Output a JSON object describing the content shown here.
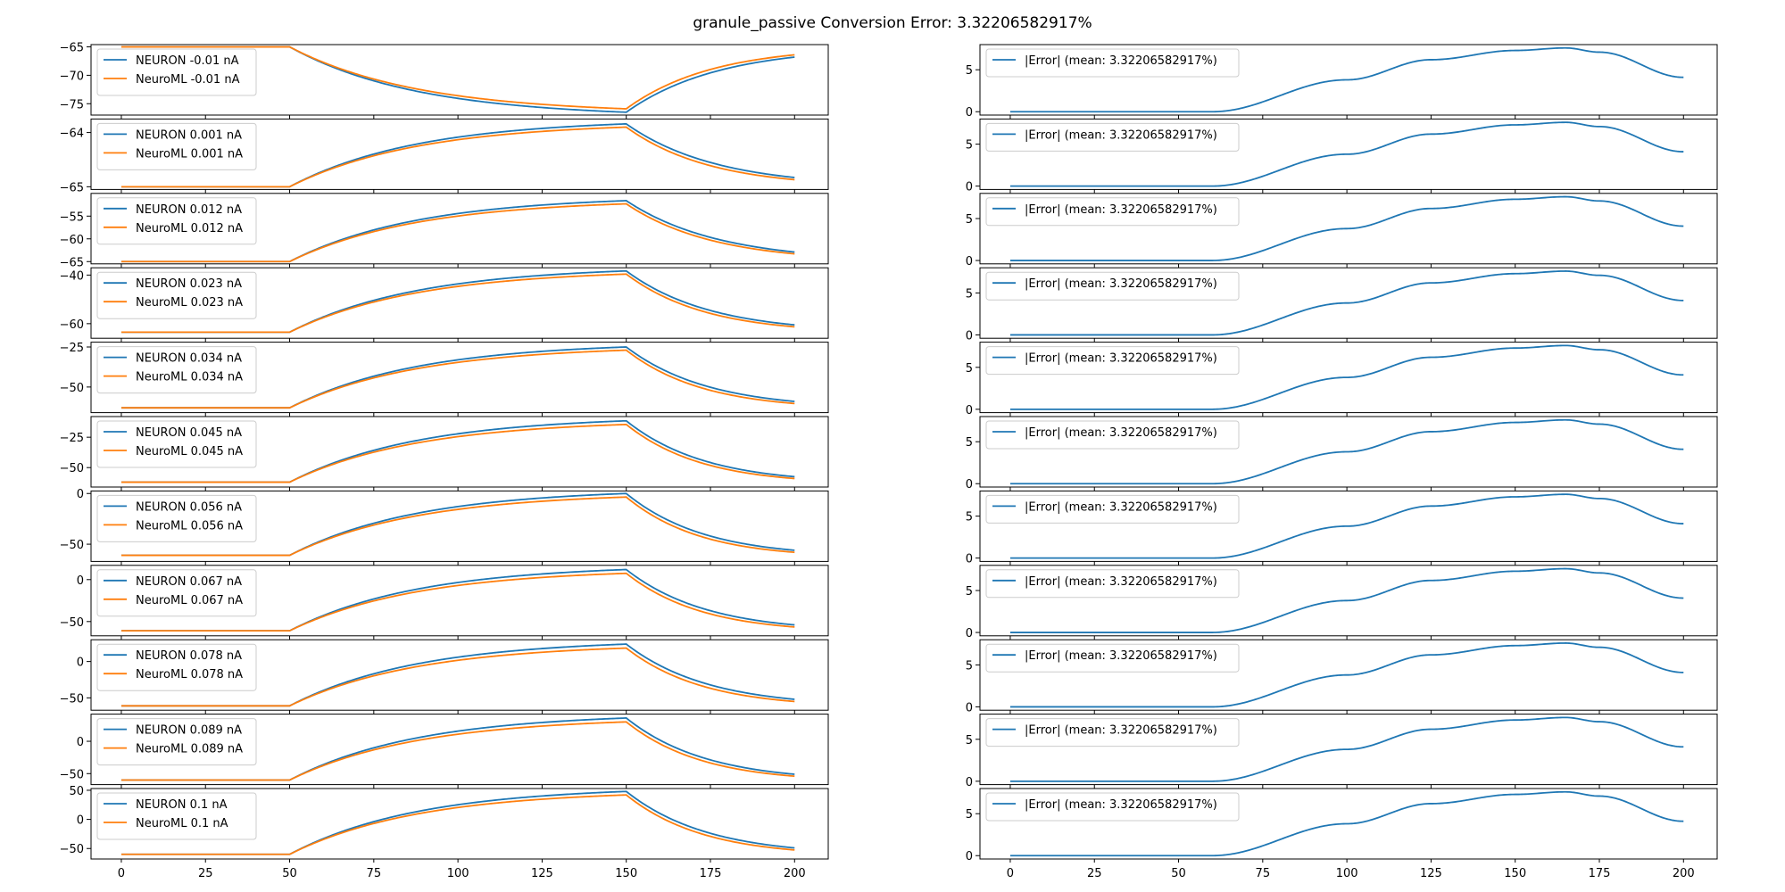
{
  "title": "granule_passive Conversion Error: 3.32206582917%",
  "colors": {
    "neuron": "#1f77b4",
    "neuroml": "#ff7f0e",
    "error": "#1f77b4"
  },
  "x_ticks": [
    0,
    25,
    50,
    75,
    100,
    125,
    150,
    175,
    200
  ],
  "chart_data": [
    {
      "type": "line",
      "panel": "voltage",
      "legend": [
        "NEURON -0.01 nA",
        "NeuroML -0.01 nA"
      ],
      "ylim": [
        -77,
        -64.6
      ],
      "yticks": [
        -65,
        -70,
        -75
      ],
      "series": [
        {
          "name": "NEURON -0.01 nA",
          "x": [
            0,
            50,
            150,
            200
          ],
          "values": [
            -65,
            -65,
            -76.5,
            -66.8
          ]
        },
        {
          "name": "NeuroML -0.01 nA",
          "x": [
            0,
            50,
            150,
            200
          ],
          "values": [
            -65,
            -65,
            -75.9,
            -66.4
          ]
        }
      ]
    },
    {
      "type": "line",
      "panel": "error",
      "legend": [
        "|Error| (mean: 3.32206582917%)"
      ],
      "ylim": [
        -0.4,
        8
      ],
      "yticks": [
        0,
        5
      ],
      "series": [
        {
          "name": "|Error| (mean: 3.32206582917%)",
          "x": [
            0,
            60,
            100,
            125,
            150,
            165,
            175,
            200
          ],
          "values": [
            0,
            0,
            3.8,
            6.2,
            7.3,
            7.6,
            7.1,
            4.1
          ]
        }
      ]
    },
    {
      "type": "line",
      "panel": "voltage",
      "legend": [
        "NEURON 0.001 nA",
        "NeuroML 0.001 nA"
      ],
      "ylim": [
        -65.05,
        -63.75
      ],
      "yticks": [
        -64,
        -65
      ],
      "series": [
        {
          "name": "NEURON 0.001 nA",
          "x": [
            0,
            50,
            150,
            200
          ],
          "values": [
            -65,
            -65,
            -63.84,
            -64.83
          ]
        },
        {
          "name": "NeuroML 0.001 nA",
          "x": [
            0,
            50,
            150,
            200
          ],
          "values": [
            -65,
            -65,
            -63.9,
            -64.87
          ]
        }
      ]
    },
    {
      "type": "line",
      "panel": "error",
      "legend": [
        "|Error| (mean: 3.32206582917%)"
      ],
      "ylim": [
        -0.4,
        8
      ],
      "yticks": [
        0,
        5
      ],
      "series": [
        {
          "name": "|Error| (mean: 3.32206582917%)",
          "x": [
            0,
            60,
            100,
            125,
            150,
            165,
            175,
            200
          ],
          "values": [
            0,
            0,
            3.8,
            6.2,
            7.3,
            7.6,
            7.1,
            4.1
          ]
        }
      ]
    },
    {
      "type": "line",
      "panel": "voltage",
      "legend": [
        "NEURON 0.012 nA",
        "NeuroML 0.012 nA"
      ],
      "ylim": [
        -65.5,
        -50
      ],
      "yticks": [
        -55,
        -60,
        -65
      ],
      "series": [
        {
          "name": "NEURON 0.012 nA",
          "x": [
            0,
            50,
            150,
            200
          ],
          "values": [
            -65,
            -65,
            -51.6,
            -62.9
          ]
        },
        {
          "name": "NeuroML 0.012 nA",
          "x": [
            0,
            50,
            150,
            200
          ],
          "values": [
            -65,
            -65,
            -52.3,
            -63.3
          ]
        }
      ]
    },
    {
      "type": "line",
      "panel": "error",
      "legend": [
        "|Error| (mean: 3.32206582917%)"
      ],
      "ylim": [
        -0.4,
        8
      ],
      "yticks": [
        0,
        5
      ],
      "series": [
        {
          "name": "|Error| (mean: 3.32206582917%)",
          "x": [
            0,
            60,
            100,
            125,
            150,
            165,
            175,
            200
          ],
          "values": [
            0,
            0,
            3.8,
            6.2,
            7.3,
            7.6,
            7.1,
            4.1
          ]
        }
      ]
    },
    {
      "type": "line",
      "panel": "voltage",
      "legend": [
        "NEURON 0.023 nA",
        "NeuroML 0.023 nA"
      ],
      "ylim": [
        -66,
        -37
      ],
      "yticks": [
        -40,
        -60
      ],
      "series": [
        {
          "name": "NEURON 0.023 nA",
          "x": [
            0,
            50,
            150,
            200
          ],
          "values": [
            -63.5,
            -63.5,
            -38.3,
            -60.5
          ]
        },
        {
          "name": "NeuroML 0.023 nA",
          "x": [
            0,
            50,
            150,
            200
          ],
          "values": [
            -63.5,
            -63.5,
            -39.6,
            -61.3
          ]
        }
      ]
    },
    {
      "type": "line",
      "panel": "error",
      "legend": [
        "|Error| (mean: 3.32206582917%)"
      ],
      "ylim": [
        -0.4,
        8
      ],
      "yticks": [
        0,
        5
      ],
      "series": [
        {
          "name": "|Error| (mean: 3.32206582917%)",
          "x": [
            0,
            60,
            100,
            125,
            150,
            165,
            175,
            200
          ],
          "values": [
            0,
            0,
            3.8,
            6.2,
            7.3,
            7.6,
            7.1,
            4.1
          ]
        }
      ]
    },
    {
      "type": "line",
      "panel": "voltage",
      "legend": [
        "NEURON 0.034 nA",
        "NeuroML 0.034 nA"
      ],
      "ylim": [
        -66,
        -22
      ],
      "yticks": [
        -25,
        -50
      ],
      "series": [
        {
          "name": "NEURON 0.034 nA",
          "x": [
            0,
            50,
            150,
            200
          ],
          "values": [
            -63,
            -63,
            -25,
            -59
          ]
        },
        {
          "name": "NeuroML 0.034 nA",
          "x": [
            0,
            50,
            150,
            200
          ],
          "values": [
            -63,
            -63,
            -27,
            -60.3
          ]
        }
      ]
    },
    {
      "type": "line",
      "panel": "error",
      "legend": [
        "|Error| (mean: 3.32206582917%)"
      ],
      "ylim": [
        -0.4,
        8
      ],
      "yticks": [
        0,
        5
      ],
      "series": [
        {
          "name": "|Error| (mean: 3.32206582917%)",
          "x": [
            0,
            60,
            100,
            125,
            150,
            165,
            175,
            200
          ],
          "values": [
            0,
            0,
            3.8,
            6.2,
            7.3,
            7.6,
            7.1,
            4.1
          ]
        }
      ]
    },
    {
      "type": "line",
      "panel": "voltage",
      "legend": [
        "NEURON 0.045 nA",
        "NeuroML 0.045 nA"
      ],
      "ylim": [
        -66,
        -8
      ],
      "yticks": [
        -25,
        -50
      ],
      "series": [
        {
          "name": "NEURON 0.045 nA",
          "x": [
            0,
            50,
            150,
            200
          ],
          "values": [
            -62,
            -62,
            -11.5,
            -57.5
          ]
        },
        {
          "name": "NeuroML 0.045 nA",
          "x": [
            0,
            50,
            150,
            200
          ],
          "values": [
            -62,
            -62,
            -14.5,
            -59
          ]
        }
      ]
    },
    {
      "type": "line",
      "panel": "error",
      "legend": [
        "|Error| (mean: 3.32206582917%)"
      ],
      "ylim": [
        -0.4,
        8
      ],
      "yticks": [
        0,
        5
      ],
      "series": [
        {
          "name": "|Error| (mean: 3.32206582917%)",
          "x": [
            0,
            60,
            100,
            125,
            150,
            165,
            175,
            200
          ],
          "values": [
            0,
            0,
            3.8,
            6.2,
            7.3,
            7.6,
            7.1,
            4.1
          ]
        }
      ]
    },
    {
      "type": "line",
      "panel": "voltage",
      "legend": [
        "NEURON 0.056 nA",
        "NeuroML 0.056 nA"
      ],
      "ylim": [
        -67,
        2.5
      ],
      "yticks": [
        0,
        -50
      ],
      "series": [
        {
          "name": "NEURON 0.056 nA",
          "x": [
            0,
            50,
            150,
            200
          ],
          "values": [
            -61,
            -61,
            0,
            -56
          ]
        },
        {
          "name": "NeuroML 0.056 nA",
          "x": [
            0,
            50,
            150,
            200
          ],
          "values": [
            -61,
            -61,
            -3.5,
            -58
          ]
        }
      ]
    },
    {
      "type": "line",
      "panel": "error",
      "legend": [
        "|Error| (mean: 3.32206582917%)"
      ],
      "ylim": [
        -0.4,
        8
      ],
      "yticks": [
        0,
        5
      ],
      "series": [
        {
          "name": "|Error| (mean: 3.32206582917%)",
          "x": [
            0,
            60,
            100,
            125,
            150,
            165,
            175,
            200
          ],
          "values": [
            0,
            0,
            3.8,
            6.2,
            7.3,
            7.6,
            7.1,
            4.1
          ]
        }
      ]
    },
    {
      "type": "line",
      "panel": "voltage",
      "legend": [
        "NEURON 0.067 nA",
        "NeuroML 0.067 nA"
      ],
      "ylim": [
        -67,
        17
      ],
      "yticks": [
        0,
        -50
      ],
      "series": [
        {
          "name": "NEURON 0.067 nA",
          "x": [
            0,
            50,
            150,
            200
          ],
          "values": [
            -61,
            -61,
            12,
            -54
          ]
        },
        {
          "name": "NeuroML 0.067 nA",
          "x": [
            0,
            50,
            150,
            200
          ],
          "values": [
            -61,
            -61,
            7.5,
            -56.5
          ]
        }
      ]
    },
    {
      "type": "line",
      "panel": "error",
      "legend": [
        "|Error| (mean: 3.32206582917%)"
      ],
      "ylim": [
        -0.4,
        8
      ],
      "yticks": [
        0,
        5
      ],
      "series": [
        {
          "name": "|Error| (mean: 3.32206582917%)",
          "x": [
            0,
            60,
            100,
            125,
            150,
            165,
            175,
            200
          ],
          "values": [
            0,
            0,
            3.8,
            6.2,
            7.3,
            7.6,
            7.1,
            4.1
          ]
        }
      ]
    },
    {
      "type": "line",
      "panel": "voltage",
      "legend": [
        "NEURON 0.078 nA",
        "NeuroML 0.078 nA"
      ],
      "ylim": [
        -67,
        30
      ],
      "yticks": [
        0,
        -50
      ],
      "series": [
        {
          "name": "NEURON 0.078 nA",
          "x": [
            0,
            50,
            150,
            200
          ],
          "values": [
            -61,
            -61,
            24,
            -52
          ]
        },
        {
          "name": "NeuroML 0.078 nA",
          "x": [
            0,
            50,
            150,
            200
          ],
          "values": [
            -61,
            -61,
            18.5,
            -55
          ]
        }
      ]
    },
    {
      "type": "line",
      "panel": "error",
      "legend": [
        "|Error| (mean: 3.32206582917%)"
      ],
      "ylim": [
        -0.4,
        8
      ],
      "yticks": [
        0,
        5
      ],
      "series": [
        {
          "name": "|Error| (mean: 3.32206582917%)",
          "x": [
            0,
            60,
            100,
            125,
            150,
            165,
            175,
            200
          ],
          "values": [
            0,
            0,
            3.8,
            6.2,
            7.3,
            7.6,
            7.1,
            4.1
          ]
        }
      ]
    },
    {
      "type": "line",
      "panel": "voltage",
      "legend": [
        "NEURON 0.089 nA",
        "NeuroML 0.089 nA"
      ],
      "ylim": [
        -67,
        42
      ],
      "yticks": [
        0,
        -50
      ],
      "series": [
        {
          "name": "NEURON 0.089 nA",
          "x": [
            0,
            50,
            150,
            200
          ],
          "values": [
            -60,
            -60,
            36,
            -51
          ]
        },
        {
          "name": "NeuroML 0.089 nA",
          "x": [
            0,
            50,
            150,
            200
          ],
          "values": [
            -60,
            -60,
            30,
            -54
          ]
        }
      ]
    },
    {
      "type": "line",
      "panel": "error",
      "legend": [
        "|Error| (mean: 3.32206582917%)"
      ],
      "ylim": [
        -0.4,
        8
      ],
      "yticks": [
        0,
        5
      ],
      "series": [
        {
          "name": "|Error| (mean: 3.32206582917%)",
          "x": [
            0,
            60,
            100,
            125,
            150,
            165,
            175,
            200
          ],
          "values": [
            0,
            0,
            3.8,
            6.2,
            7.3,
            7.6,
            7.1,
            4.1
          ]
        }
      ]
    },
    {
      "type": "line",
      "panel": "voltage",
      "legend": [
        "NEURON 0.1 nA",
        "NeuroML 0.1 nA"
      ],
      "ylim": [
        -68,
        53
      ],
      "yticks": [
        50,
        0,
        -50
      ],
      "series": [
        {
          "name": "NEURON 0.1 nA",
          "x": [
            0,
            50,
            150,
            200
          ],
          "values": [
            -60,
            -60,
            48,
            -49
          ]
        },
        {
          "name": "NeuroML 0.1 nA",
          "x": [
            0,
            50,
            150,
            200
          ],
          "values": [
            -60,
            -60,
            42,
            -52.5
          ]
        }
      ]
    },
    {
      "type": "line",
      "panel": "error",
      "legend": [
        "|Error| (mean: 3.32206582917%)"
      ],
      "ylim": [
        -0.4,
        8
      ],
      "yticks": [
        0,
        5
      ],
      "series": [
        {
          "name": "|Error| (mean: 3.32206582917%)",
          "x": [
            0,
            60,
            100,
            125,
            150,
            165,
            175,
            200
          ],
          "values": [
            0,
            0,
            3.8,
            6.2,
            7.3,
            7.6,
            7.1,
            4.1
          ]
        }
      ]
    }
  ]
}
